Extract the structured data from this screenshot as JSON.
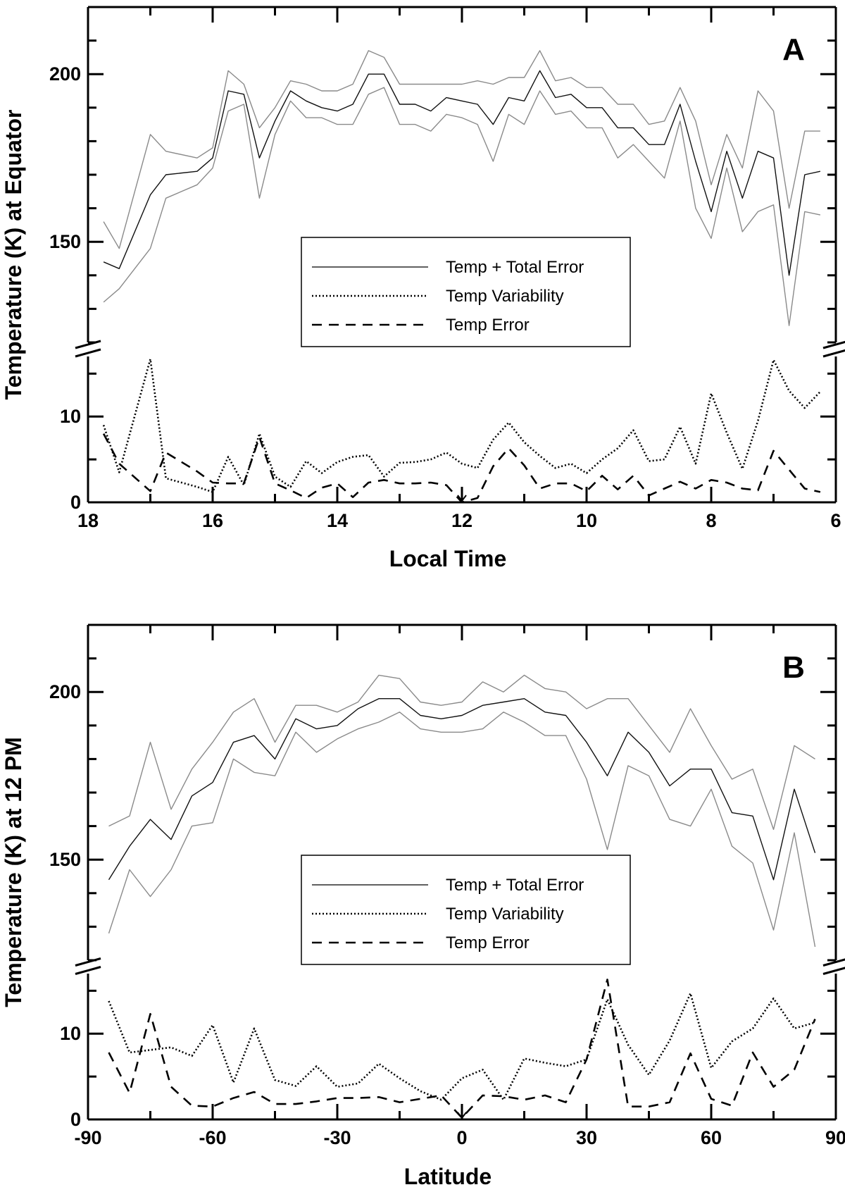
{
  "chart_data": [
    {
      "type": "line",
      "panel_label": "A",
      "xlabel": "Local Time",
      "ylabel": "Temperature (K) at Equator",
      "xlim": [
        18,
        6
      ],
      "x_reversed": true,
      "xticks": [
        18,
        16,
        14,
        12,
        10,
        8,
        6
      ],
      "y_upper_ticks": [
        200,
        150
      ],
      "y_lower_ticks": [
        10,
        0
      ],
      "y_upper_range": [
        120,
        220
      ],
      "y_lower_range": [
        0,
        17
      ],
      "axis_break": true,
      "legend": [
        "Temp + Total Error",
        "Temp Variability",
        "Temp Error"
      ],
      "midline_marker_x": 12,
      "x": [
        17.75,
        17.5,
        17.0,
        16.75,
        16.25,
        16.0,
        15.75,
        15.5,
        15.25,
        15.0,
        14.75,
        14.5,
        14.25,
        14.0,
        13.75,
        13.5,
        13.25,
        13.0,
        12.75,
        12.5,
        12.25,
        12.0,
        11.75,
        11.5,
        11.25,
        11.0,
        10.75,
        10.5,
        10.25,
        10.0,
        9.75,
        9.5,
        9.25,
        9.0,
        8.75,
        8.5,
        8.25,
        8.0,
        7.75,
        7.5,
        7.25,
        7.0,
        6.75,
        6.5,
        6.25
      ],
      "series": [
        {
          "name": "Temperature",
          "values": [
            144,
            142,
            164,
            170,
            171,
            175,
            195,
            194,
            175,
            186,
            195,
            192,
            190,
            189,
            191,
            200,
            200,
            191,
            191,
            189,
            193,
            192,
            191,
            185,
            193,
            192,
            201,
            193,
            194,
            190,
            190,
            184,
            184,
            179,
            179,
            191,
            174,
            159,
            177,
            163,
            177,
            175,
            140,
            170,
            171
          ]
        },
        {
          "name": "Temp + Total Error (upper)",
          "values": [
            156,
            148,
            182,
            177,
            175,
            178,
            201,
            197,
            184,
            190,
            198,
            197,
            195,
            195,
            197,
            207,
            205,
            197,
            197,
            197,
            197,
            197,
            198,
            197,
            199,
            199,
            207,
            198,
            199,
            196,
            196,
            191,
            191,
            185,
            186,
            196,
            186,
            167,
            182,
            172,
            195,
            189,
            160,
            183,
            183
          ]
        },
        {
          "name": "Temp - Total Error (lower)",
          "values": [
            132,
            136,
            148,
            163,
            167,
            172,
            189,
            191,
            163,
            182,
            192,
            187,
            187,
            185,
            185,
            194,
            196,
            185,
            185,
            183,
            188,
            187,
            185,
            174,
            188,
            185,
            195,
            188,
            189,
            184,
            184,
            175,
            179,
            174,
            169,
            186,
            160,
            151,
            172,
            153,
            159,
            161,
            125,
            159,
            158
          ]
        },
        {
          "name": "Temp Variability",
          "values": [
            9,
            3.5,
            16.7,
            2.8,
            1.8,
            1.2,
            5.3,
            2,
            8,
            3,
            1.8,
            4.8,
            3.4,
            4.7,
            5.3,
            5.5,
            3,
            4.6,
            4.7,
            5,
            5.8,
            4.5,
            4,
            7.3,
            9.3,
            7,
            5.4,
            4,
            4.5,
            3.4,
            5,
            6.3,
            8.4,
            4.8,
            5,
            8.8,
            4.5,
            12.7,
            8.1,
            3.9,
            9.5,
            16.6,
            13,
            11,
            12.9
          ]
        },
        {
          "name": "Temp Error",
          "values": [
            8,
            4.5,
            1.3,
            5.8,
            3.6,
            2.3,
            2.2,
            2.2,
            7.6,
            2.2,
            1.4,
            0.5,
            1.7,
            2.2,
            0.6,
            2.3,
            2.6,
            2.2,
            2.2,
            2.3,
            2,
            0,
            0.5,
            4.2,
            6.3,
            4.3,
            1.6,
            2.2,
            2.2,
            1.3,
            3.1,
            1.5,
            3.1,
            0.8,
            1.6,
            2.4,
            1.6,
            2.6,
            2.3,
            1.6,
            1.4,
            6,
            3.8,
            1.6,
            1.2
          ]
        }
      ]
    },
    {
      "type": "line",
      "panel_label": "B",
      "xlabel": "Latitude",
      "ylabel": "Temperature (K) at 12 PM",
      "xlim": [
        -90,
        90
      ],
      "x_reversed": false,
      "xticks": [
        -90,
        -60,
        -30,
        0,
        30,
        60,
        90
      ],
      "y_upper_ticks": [
        200,
        150
      ],
      "y_lower_ticks": [
        10,
        0
      ],
      "y_upper_range": [
        120,
        220
      ],
      "y_lower_range": [
        0,
        17
      ],
      "axis_break": true,
      "legend": [
        "Temp + Total Error",
        "Temp Variability",
        "Temp Error"
      ],
      "midline_marker_x": 0,
      "x": [
        -85,
        -80,
        -75,
        -70,
        -65,
        -60,
        -55,
        -50,
        -45,
        -40,
        -35,
        -30,
        -25,
        -20,
        -15,
        -10,
        -5,
        0,
        5,
        10,
        15,
        20,
        25,
        30,
        35,
        40,
        45,
        50,
        55,
        60,
        65,
        70,
        75,
        80,
        85
      ],
      "series": [
        {
          "name": "Temperature",
          "values": [
            144,
            154,
            162,
            156,
            169,
            173,
            185,
            187,
            180,
            192,
            189,
            190,
            195,
            198,
            198,
            193,
            192,
            193,
            196,
            197,
            198,
            194,
            193,
            185,
            175,
            188,
            182,
            172,
            177,
            177,
            164,
            163,
            144,
            171,
            152
          ]
        },
        {
          "name": "Temp + Total Error (upper)",
          "values": [
            160,
            163,
            185,
            165,
            177,
            185,
            194,
            198,
            185,
            196,
            196,
            194,
            197,
            205,
            204,
            197,
            196,
            197,
            203,
            200,
            205,
            201,
            200,
            195,
            198,
            198,
            190,
            182,
            195,
            184,
            174,
            177,
            159,
            184,
            180
          ]
        },
        {
          "name": "Temp - Total Error (lower)",
          "values": [
            128,
            147,
            139,
            147,
            160,
            161,
            180,
            176,
            175,
            188,
            182,
            186,
            189,
            191,
            194,
            189,
            188,
            188,
            189,
            194,
            191,
            187,
            187,
            174,
            153,
            178,
            175,
            162,
            160,
            171,
            154,
            149,
            129,
            158,
            124
          ]
        },
        {
          "name": "Temp Variability",
          "values": [
            13.8,
            7.8,
            8.1,
            8.4,
            7.4,
            11,
            4.3,
            10.6,
            4.6,
            3.9,
            6.2,
            3.8,
            4.2,
            6.5,
            4.8,
            3.3,
            2.3,
            4.8,
            5.8,
            2.3,
            7.1,
            6.6,
            6.2,
            7,
            14,
            8.7,
            5.2,
            9.2,
            14.7,
            6,
            9.1,
            10.6,
            14.1,
            10.6,
            11.3
          ]
        },
        {
          "name": "Temp Error",
          "values": [
            7.8,
            3.1,
            12.3,
            3.8,
            1.6,
            1.5,
            2.5,
            3.2,
            1.8,
            1.8,
            2.1,
            2.5,
            2.5,
            2.6,
            2,
            2.4,
            2.8,
            0.2,
            2.8,
            2.7,
            2.3,
            2.8,
            2,
            7,
            16.3,
            1.5,
            1.5,
            2,
            7.7,
            2.4,
            1.6,
            7.8,
            3.8,
            5.8,
            11.7
          ]
        }
      ]
    }
  ]
}
